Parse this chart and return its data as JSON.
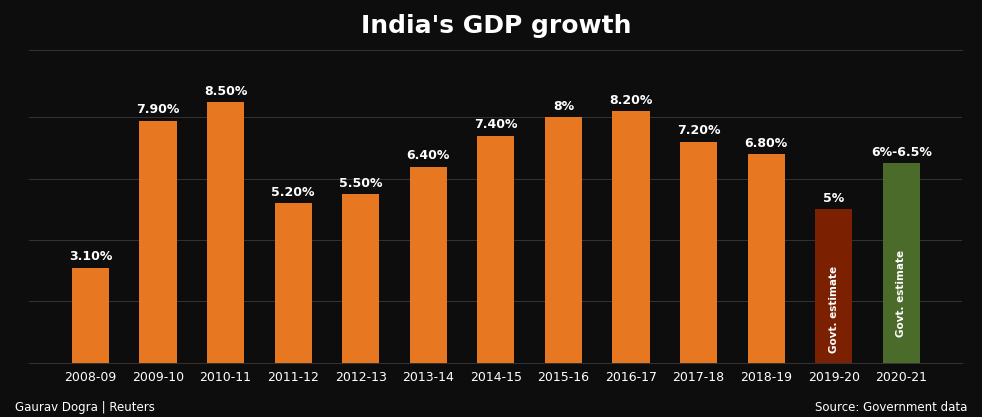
{
  "categories": [
    "2008-09",
    "2009-10",
    "2010-11",
    "2011-12",
    "2012-13",
    "2013-14",
    "2014-15",
    "2015-16",
    "2016-17",
    "2017-18",
    "2018-19",
    "2019-20",
    "2020-21"
  ],
  "values": [
    3.1,
    7.9,
    8.5,
    5.2,
    5.5,
    6.4,
    7.4,
    8.0,
    8.2,
    7.2,
    6.8,
    5.0,
    6.5
  ],
  "bar_colors": [
    "#E87722",
    "#E87722",
    "#E87722",
    "#E87722",
    "#E87722",
    "#E87722",
    "#E87722",
    "#E87722",
    "#E87722",
    "#E87722",
    "#E87722",
    "#7B2000",
    "#4B6B2A"
  ],
  "labels": [
    "3.10%",
    "7.90%",
    "8.50%",
    "5.20%",
    "5.50%",
    "6.40%",
    "7.40%",
    "8%",
    "8.20%",
    "7.20%",
    "6.80%",
    "5%",
    "6%-6.5%"
  ],
  "govt_estimate_bars": [
    11,
    12
  ],
  "govt_estimate_label": "Govt. estimate",
  "title": "India's GDP growth",
  "background_color": "#0D0D0D",
  "text_color": "#FFFFFF",
  "grid_color": "#3A3A3A",
  "ylim": [
    0,
    10.2
  ],
  "footnote_left": "Gaurav Dogra | Reuters",
  "footnote_right": "Source: Government data",
  "title_fontsize": 18,
  "label_fontsize": 9,
  "tick_fontsize": 9,
  "footnote_fontsize": 8.5,
  "bar_width": 0.55
}
